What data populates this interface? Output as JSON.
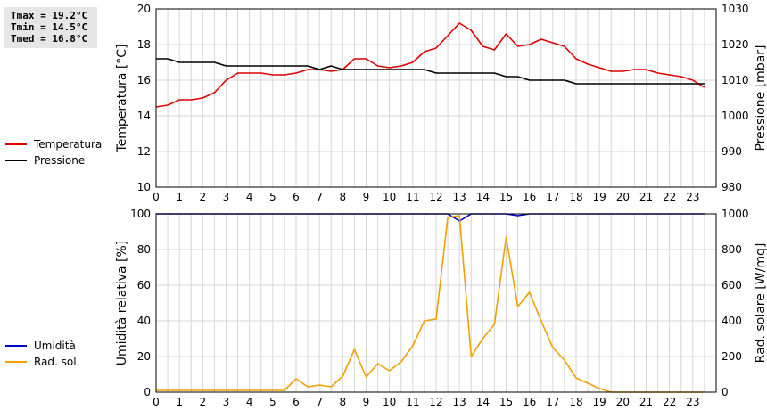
{
  "stats": {
    "tmax": "Tmax = 19.2°C",
    "tmin": "Tmin = 14.5°C",
    "tmed": "Tmed = 16.8°C"
  },
  "colors": {
    "temperatura": "#dd0000",
    "pressione": "#000000",
    "umidita": "#0000cc",
    "rad_sol": "#f0a000",
    "grid": "#d6d6d6"
  },
  "chart_data": [
    {
      "type": "line",
      "x_ticks": [
        "0",
        "1",
        "2",
        "3",
        "4",
        "5",
        "6",
        "7",
        "8",
        "9",
        "10",
        "11",
        "12",
        "13",
        "14",
        "15",
        "16",
        "17",
        "18",
        "19",
        "20",
        "21",
        "22",
        "23"
      ],
      "xlim": [
        0,
        24
      ],
      "ylabel": "Temperatura [°C]",
      "ylabel_right": "Pressione [mbar]",
      "ylim": [
        10,
        20
      ],
      "ylim_right": [
        980,
        1030
      ],
      "y_ticks": [
        "10",
        "12",
        "14",
        "16",
        "18",
        "20"
      ],
      "y_ticks_right": [
        "980",
        "990",
        "1000",
        "1010",
        "1020",
        "1030"
      ],
      "grid": true,
      "legend": [
        {
          "name": "Temperatura",
          "color_key": "temperatura"
        },
        {
          "name": "Pressione",
          "color_key": "pressione"
        }
      ],
      "series": [
        {
          "name": "Temperatura",
          "axis": "left",
          "x": [
            0,
            0.5,
            1,
            1.5,
            2,
            2.5,
            3,
            3.5,
            4,
            4.5,
            5,
            5.5,
            6,
            6.5,
            7,
            7.5,
            8,
            8.5,
            9,
            9.5,
            10,
            10.5,
            11,
            11.5,
            12,
            12.5,
            13,
            13.5,
            14,
            14.5,
            15,
            15.5,
            16,
            16.5,
            17,
            17.5,
            18,
            18.5,
            19,
            19.5,
            20,
            20.5,
            21,
            21.5,
            22,
            22.5,
            23,
            23.5
          ],
          "values": [
            14.5,
            14.6,
            14.9,
            14.9,
            15.0,
            15.3,
            16.0,
            16.4,
            16.4,
            16.4,
            16.3,
            16.3,
            16.4,
            16.6,
            16.6,
            16.5,
            16.6,
            17.2,
            17.2,
            16.8,
            16.7,
            16.8,
            17.0,
            17.6,
            17.8,
            18.5,
            19.2,
            18.8,
            17.9,
            17.7,
            18.6,
            17.9,
            18.0,
            18.3,
            18.1,
            17.9,
            17.2,
            16.9,
            16.7,
            16.5,
            16.5,
            16.6,
            16.6,
            16.4,
            16.3,
            16.2,
            16.0,
            15.6
          ]
        },
        {
          "name": "Pressione",
          "axis": "right",
          "x": [
            0,
            0.5,
            1,
            1.5,
            2,
            2.5,
            3,
            3.5,
            4,
            4.5,
            5,
            5.5,
            6,
            6.5,
            7,
            7.5,
            8,
            8.5,
            9,
            9.5,
            10,
            10.5,
            11,
            11.5,
            12,
            12.5,
            13,
            13.5,
            14,
            14.5,
            15,
            15.5,
            16,
            16.5,
            17,
            17.5,
            18,
            18.5,
            19,
            19.5,
            20,
            20.5,
            21,
            21.5,
            22,
            22.5,
            23,
            23.5
          ],
          "values": [
            1016,
            1016,
            1015,
            1015,
            1015,
            1015,
            1014,
            1014,
            1014,
            1014,
            1014,
            1014,
            1014,
            1014,
            1013,
            1014,
            1013,
            1013,
            1013,
            1013,
            1013,
            1013,
            1013,
            1013,
            1012,
            1012,
            1012,
            1012,
            1012,
            1012,
            1011,
            1011,
            1010,
            1010,
            1010,
            1010,
            1009,
            1009,
            1009,
            1009,
            1009,
            1009,
            1009,
            1009,
            1009,
            1009,
            1009,
            1009
          ]
        }
      ]
    },
    {
      "type": "line",
      "x_ticks": [
        "0",
        "1",
        "2",
        "3",
        "4",
        "5",
        "6",
        "7",
        "8",
        "9",
        "10",
        "11",
        "12",
        "13",
        "14",
        "15",
        "16",
        "17",
        "18",
        "19",
        "20",
        "21",
        "22",
        "23"
      ],
      "xlim": [
        0,
        24
      ],
      "ylabel": "Umidità relativa [%]",
      "ylabel_right": "Rad. solare [W/mq]",
      "ylim": [
        0,
        100
      ],
      "ylim_right": [
        0,
        1000
      ],
      "y_ticks": [
        "0",
        "20",
        "40",
        "60",
        "80",
        "100"
      ],
      "y_ticks_right": [
        "0",
        "200",
        "400",
        "600",
        "800",
        "1000"
      ],
      "grid": true,
      "legend": [
        {
          "name": "Umidità",
          "color_key": "umidita"
        },
        {
          "name": "Rad. sol.",
          "color_key": "rad_sol"
        }
      ],
      "series": [
        {
          "name": "Umidità",
          "axis": "left",
          "x": [
            0,
            12.5,
            13,
            13.5,
            15,
            15.5,
            16,
            23.5
          ],
          "values": [
            100,
            100,
            96,
            100,
            100,
            99,
            100,
            100
          ]
        },
        {
          "name": "Rad. sol.",
          "axis": "right",
          "x": [
            0,
            0.5,
            1,
            1.5,
            2,
            2.5,
            3,
            3.5,
            4,
            4.5,
            5,
            5.5,
            6,
            6.5,
            7,
            7.5,
            8,
            8.5,
            9,
            9.5,
            10,
            10.5,
            11,
            11.5,
            12,
            12.5,
            13,
            13.5,
            14,
            14.5,
            15,
            15.5,
            16,
            16.5,
            17,
            17.5,
            18,
            18.5,
            19,
            19.5,
            20,
            20.5,
            21,
            21.5,
            22,
            22.5,
            23,
            23.5
          ],
          "values": [
            10,
            10,
            10,
            10,
            10,
            10,
            10,
            10,
            10,
            10,
            10,
            10,
            75,
            30,
            40,
            30,
            90,
            240,
            85,
            160,
            120,
            170,
            260,
            400,
            410,
            980,
            990,
            200,
            300,
            380,
            870,
            480,
            560,
            400,
            250,
            180,
            80,
            50,
            20,
            0,
            0,
            0,
            0,
            0,
            0,
            0,
            0,
            0
          ]
        }
      ]
    }
  ]
}
